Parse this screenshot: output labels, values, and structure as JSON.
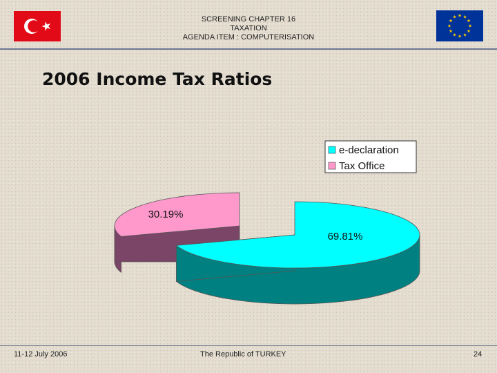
{
  "header": {
    "line1": "SCREENING CHAPTER 16",
    "line2": "TAXATION",
    "line3": "AGENDA ITEM :  COMPUTERISATION"
  },
  "title": "2006 Income Tax Ratios",
  "chart_data": {
    "type": "pie",
    "style": "3d-exploded",
    "title": "",
    "legend": "top-right",
    "categories": [
      "e-declaration",
      "Tax Office"
    ],
    "values": [
      69.81,
      30.19
    ],
    "labels": [
      "69.81%",
      "30.19%"
    ],
    "colors": [
      "#00ffff",
      "#ff99cc"
    ],
    "side_colors": [
      "#008080",
      "#7a4566"
    ]
  },
  "footer": {
    "date": "11-12 July 2006",
    "org": "The Republic of TURKEY",
    "page": "24"
  },
  "flags": {
    "left": "turkey-flag",
    "right": "eu-flag"
  }
}
